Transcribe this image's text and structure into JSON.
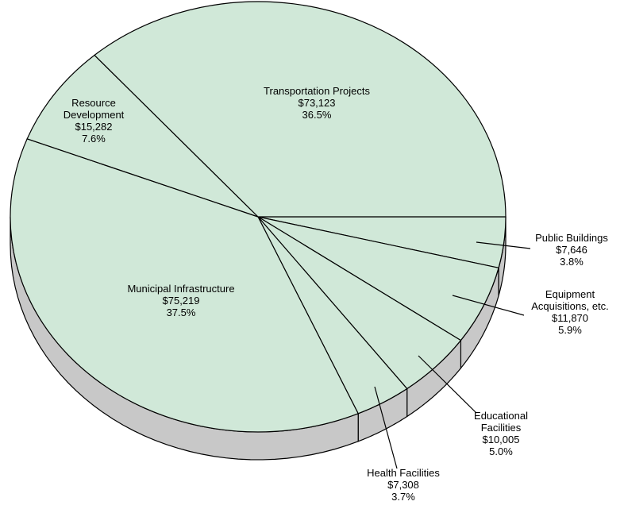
{
  "chart_data": {
    "type": "pie",
    "categories": [
      "Public Buildings",
      "Equipment\nAcquisitions, etc.",
      "Educational\nFacilities",
      "Health Facilities",
      "Municipal Infrastructure",
      "Resource\nDevelopment",
      "Transportation Projects"
    ],
    "values": [
      7646,
      11870,
      10005,
      7308,
      75219,
      15282,
      73123
    ],
    "value_labels": [
      "$7,646",
      "$11,870",
      "$10,005",
      "$7,308",
      "$75,219",
      "$15,282",
      "$73,123"
    ],
    "percentages": [
      3.8,
      5.9,
      5.0,
      3.7,
      37.5,
      7.6,
      36.5
    ],
    "percentage_labels": [
      "3.8%",
      "5.9%",
      "5.0%",
      "3.7%",
      "37.5%",
      "7.6%",
      "36.5%"
    ],
    "color": "#d0e8d8",
    "side_color": "#c8c8c8"
  }
}
